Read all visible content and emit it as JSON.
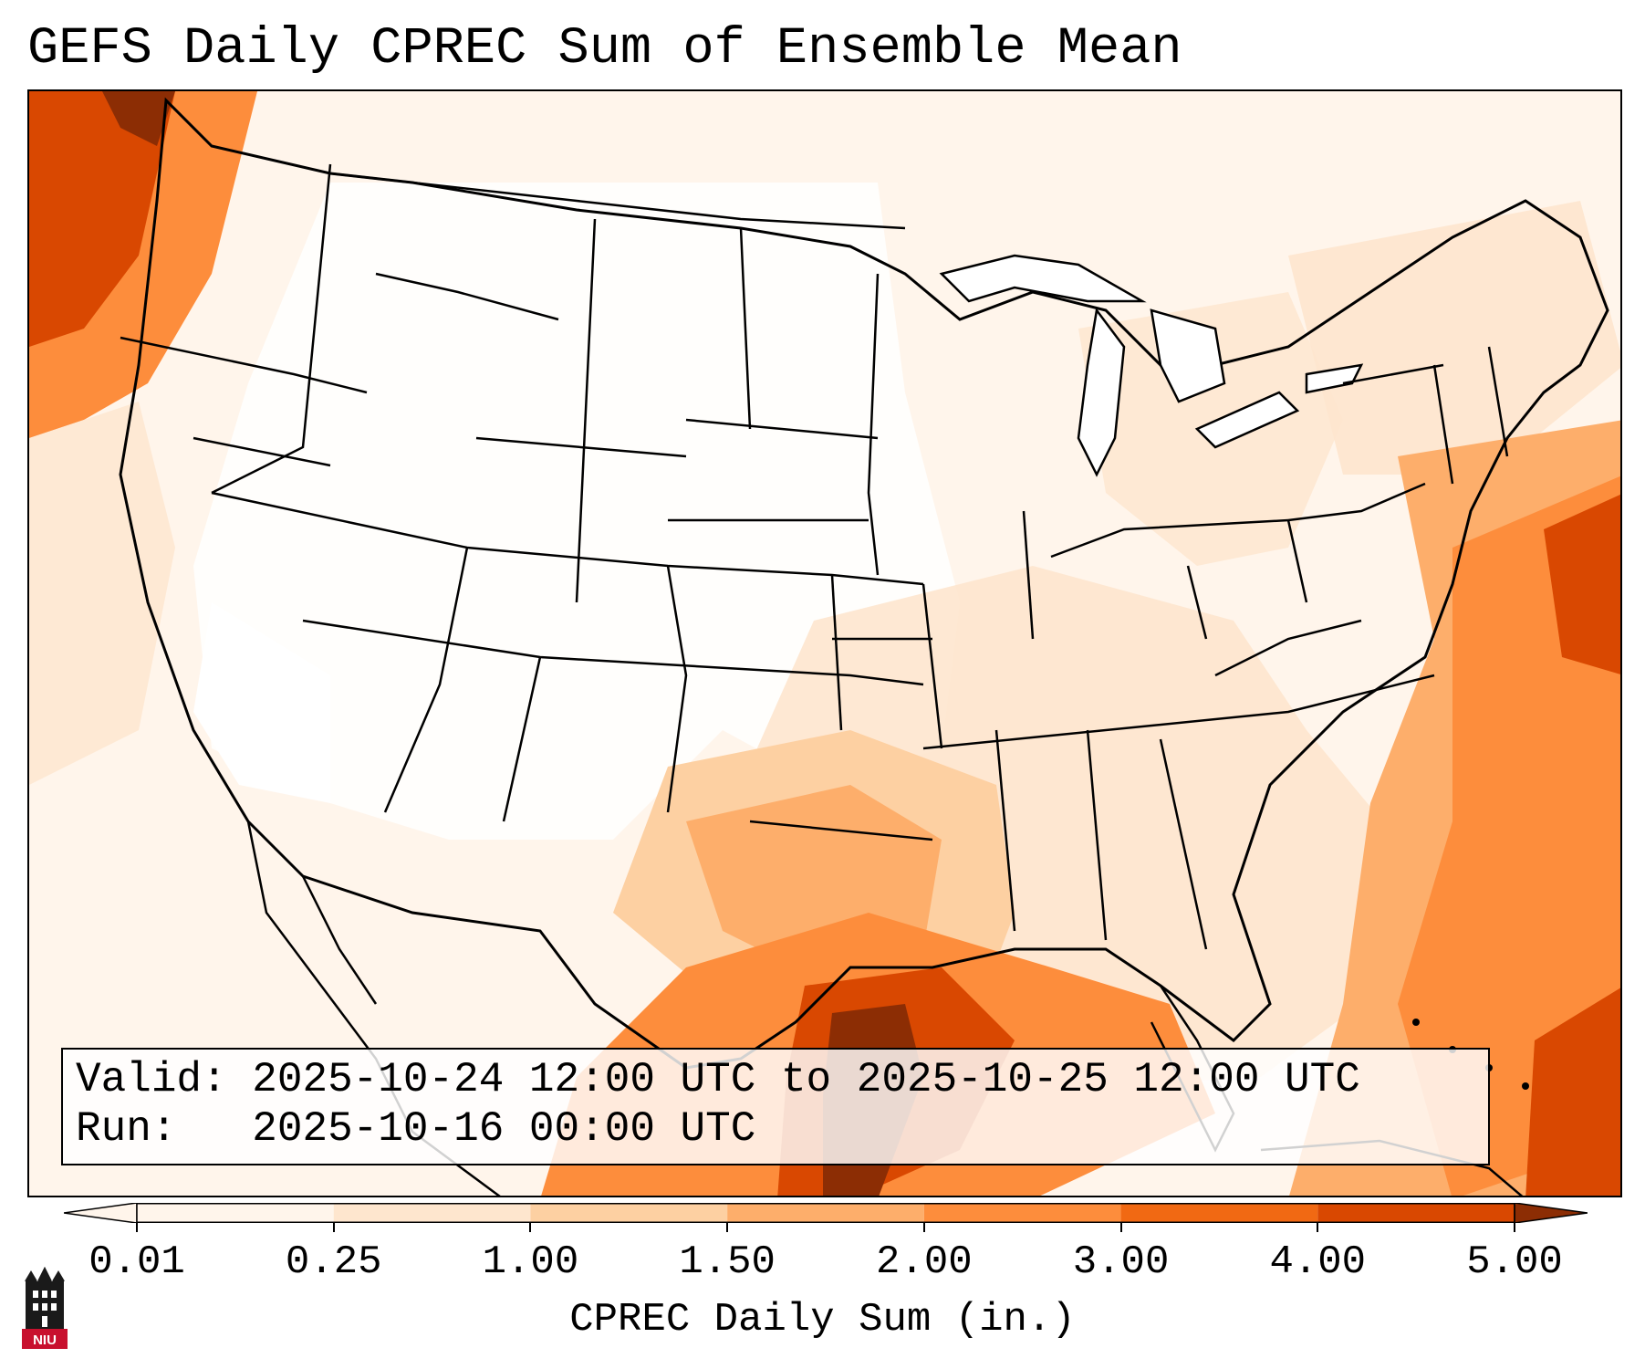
{
  "title": "GEFS Daily CPREC Sum of Ensemble Mean",
  "info": {
    "valid_label": "Valid:",
    "valid_value": "2025-10-24 12:00 UTC to 2025-10-25 12:00 UTC",
    "run_label": "Run:",
    "run_value": "2025-10-16 00:00 UTC"
  },
  "colorbar": {
    "label": "CPREC Daily Sum (in.)",
    "ticks": [
      "0.01",
      "0.25",
      "1.00",
      "1.50",
      "2.00",
      "3.00",
      "4.00",
      "5.00"
    ],
    "colors": [
      "#fff5eb",
      "#fee6ce",
      "#fdd0a2",
      "#fdae6b",
      "#fd8d3c",
      "#f16913",
      "#d94801",
      "#8c2d04"
    ],
    "extend": "both"
  },
  "logo": {
    "text": "NIU",
    "color": "#c8102e"
  },
  "precip_regions": [
    {
      "level": "high",
      "location": "Pacific Northwest coast"
    },
    {
      "level": "very-high",
      "location": "Texas Gulf Coast"
    },
    {
      "level": "moderate",
      "location": "Southern Plains / Texas"
    },
    {
      "level": "high",
      "location": "Western Atlantic offshore"
    },
    {
      "level": "high",
      "location": "Bahamas / Cuba region"
    }
  ]
}
